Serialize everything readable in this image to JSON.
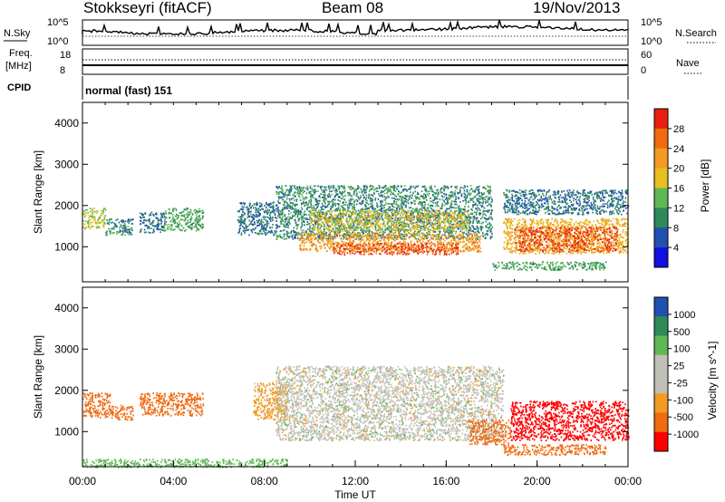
{
  "header": {
    "station": "Stokkseyri (fitACF)",
    "beam": "Beam 08",
    "date": "19/Nov/2013"
  },
  "top_panels": {
    "nsky_label": "N.Sky",
    "nsky_ticks": [
      "10^5",
      "10^0"
    ],
    "nsearch_label": "N.Search",
    "nsearch_ticks": [
      "10^5",
      "10^0"
    ],
    "freq_label_line1": "Freq.",
    "freq_label_line2": "[MHz]",
    "freq_ticks": [
      "18",
      "8"
    ],
    "nave_label": "Nave",
    "nave_ticks": [
      "60",
      "0"
    ],
    "cpid_label": "CPID",
    "cpid_text": "normal (fast) 151"
  },
  "colors": {
    "power_scale": [
      "#1010e0",
      "#2050b0",
      "#2f8a5a",
      "#5fb855",
      "#e6c020",
      "#f39a20",
      "#f06a10",
      "#e82010",
      "#ff0000"
    ],
    "velocity_scale": [
      "#2050b0",
      "#2f8a5a",
      "#5fb855",
      "#c0c0b8",
      "#c0c0b8",
      "#f39a20",
      "#f06a10",
      "#ff0000"
    ]
  },
  "chart_data": [
    {
      "type": "heatmap",
      "name": "power-panel",
      "ylabel": "Slant Range [km]",
      "xlabel": "",
      "x_range": [
        0,
        24
      ],
      "y_range": [
        150,
        4500
      ],
      "y_ticks": [
        1000,
        2000,
        3000,
        4000
      ],
      "colorbar_label": "Power [dB]",
      "colorbar_ticks": [
        "4",
        "8",
        "12",
        "16",
        "20",
        "24",
        "28"
      ],
      "colorbar_range": [
        0,
        32
      ],
      "regions": [
        {
          "x": [
            0.0,
            1.0
          ],
          "y": [
            1450,
            1950
          ],
          "value": 16
        },
        {
          "x": [
            1.0,
            2.2
          ],
          "y": [
            1300,
            1700
          ],
          "value": 10
        },
        {
          "x": [
            2.5,
            3.6
          ],
          "y": [
            1350,
            1850
          ],
          "value": 8
        },
        {
          "x": [
            3.6,
            5.3
          ],
          "y": [
            1400,
            1950
          ],
          "value": 12
        },
        {
          "x": [
            6.8,
            8.5
          ],
          "y": [
            1300,
            2100
          ],
          "value": 8
        },
        {
          "x": [
            8.5,
            18.0
          ],
          "y": [
            1200,
            2500
          ],
          "value": 10
        },
        {
          "x": [
            10.0,
            17.0
          ],
          "y": [
            1400,
            1900
          ],
          "value": 18
        },
        {
          "x": [
            9.5,
            17.5
          ],
          "y": [
            900,
            1350
          ],
          "value": 22
        },
        {
          "x": [
            11.0,
            16.5
          ],
          "y": [
            820,
            1100
          ],
          "value": 28
        },
        {
          "x": [
            18.5,
            24.0
          ],
          "y": [
            850,
            1700
          ],
          "value": 20
        },
        {
          "x": [
            19.0,
            23.5
          ],
          "y": [
            900,
            1500
          ],
          "value": 28
        },
        {
          "x": [
            18.0,
            23.0
          ],
          "y": [
            450,
            650
          ],
          "value": 12
        },
        {
          "x": [
            18.5,
            24.0
          ],
          "y": [
            1800,
            2400
          ],
          "value": 8
        }
      ]
    },
    {
      "type": "heatmap",
      "name": "velocity-panel",
      "ylabel": "Slant Range [km]",
      "xlabel": "Time UT",
      "x_range": [
        0,
        24
      ],
      "y_range": [
        150,
        4500
      ],
      "y_ticks": [
        1000,
        2000,
        3000,
        4000
      ],
      "x_ticks": [
        "00:00",
        "04:00",
        "08:00",
        "12:00",
        "16:00",
        "20:00",
        "00:00"
      ],
      "colorbar_label": "Velocity [m s^-1]",
      "colorbar_ticks": [
        "1000",
        "500",
        "100",
        "25",
        "-25",
        "-100",
        "-500",
        "-1000"
      ],
      "regions": [
        {
          "x": [
            0.0,
            1.2
          ],
          "y": [
            1350,
            1950
          ],
          "value": -300
        },
        {
          "x": [
            1.2,
            2.2
          ],
          "y": [
            1300,
            1650
          ],
          "value": -250
        },
        {
          "x": [
            2.5,
            5.3
          ],
          "y": [
            1400,
            1950
          ],
          "value": -200
        },
        {
          "x": [
            7.5,
            9.0
          ],
          "y": [
            1300,
            2200
          ],
          "value": -50
        },
        {
          "x": [
            8.5,
            18.5
          ],
          "y": [
            800,
            2600
          ],
          "value": 0
        },
        {
          "x": [
            17.0,
            18.8
          ],
          "y": [
            700,
            1300
          ],
          "value": -400
        },
        {
          "x": [
            18.8,
            24.0
          ],
          "y": [
            800,
            1750
          ],
          "value": -800
        },
        {
          "x": [
            18.5,
            23.0
          ],
          "y": [
            450,
            700
          ],
          "value": -300
        },
        {
          "x": [
            0.0,
            9.0
          ],
          "y": [
            150,
            350
          ],
          "value": 60
        }
      ]
    }
  ]
}
